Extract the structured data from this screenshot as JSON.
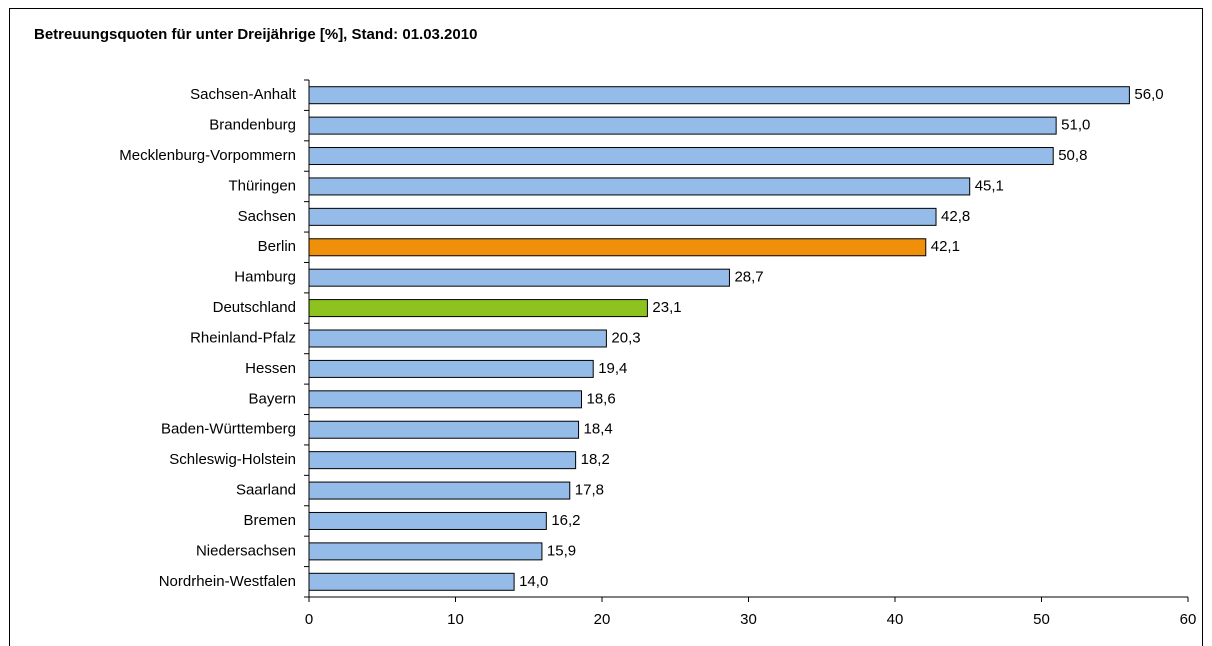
{
  "chart_data": {
    "type": "bar",
    "orientation": "horizontal",
    "title": "Betreuungsquoten für unter Dreijährige [%], Stand: 01.03.2010",
    "categories": [
      "Sachsen-Anhalt",
      "Brandenburg",
      "Mecklenburg-Vorpommern",
      "Thüringen",
      "Sachsen",
      "Berlin",
      "Hamburg",
      "Deutschland",
      "Rheinland-Pfalz",
      "Hessen",
      "Bayern",
      "Baden-Württemberg",
      "Schleswig-Holstein",
      "Saarland",
      "Bremen",
      "Niedersachsen",
      "Nordrhein-Westfalen"
    ],
    "values": [
      56.0,
      51.0,
      50.8,
      45.1,
      42.8,
      42.1,
      28.7,
      23.1,
      20.3,
      19.4,
      18.6,
      18.4,
      18.2,
      17.8,
      16.2,
      15.9,
      14.0
    ],
    "value_labels": [
      "56,0",
      "51,0",
      "50,8",
      "45,1",
      "42,8",
      "42,1",
      "28,7",
      "23,1",
      "20,3",
      "19,4",
      "18,6",
      "18,4",
      "18,2",
      "17,8",
      "16,2",
      "15,9",
      "14,0"
    ],
    "colors": [
      "#95bbe8",
      "#95bbe8",
      "#95bbe8",
      "#95bbe8",
      "#95bbe8",
      "#f0900a",
      "#95bbe8",
      "#8dc21f",
      "#95bbe8",
      "#95bbe8",
      "#95bbe8",
      "#95bbe8",
      "#95bbe8",
      "#95bbe8",
      "#95bbe8",
      "#95bbe8",
      "#95bbe8"
    ],
    "xlim": [
      0,
      60
    ],
    "xticks": [
      0,
      10,
      20,
      30,
      40,
      50,
      60
    ],
    "grid": false
  }
}
